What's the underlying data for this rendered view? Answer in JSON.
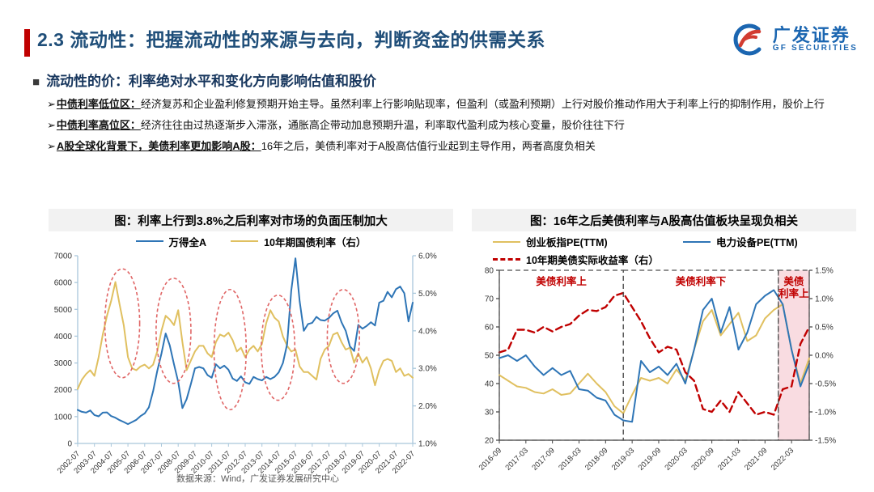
{
  "page": {
    "title": "2.3 流动性：把握流动性的来源与去向，判断资金的供需关系",
    "bullet_square": "■",
    "subtitle": "流动性的价：利率绝对水平和变化方向影响估值和股价",
    "bullet_marker": "➢",
    "bullets": [
      {
        "lead": "中债利率低位区：",
        "text": "经济复苏和企业盈利修复预期开始主导。虽然利率上行影响贴现率，但盈利（或盈利预期）上行对股价推动作用大于利率上行的抑制作用，股价上行"
      },
      {
        "lead": "中债利率高位区：",
        "text": "经济往往由过热逐渐步入滞涨，通胀高企带动加息预期升温，利率取代盈利成为核心变量，股价往往下行"
      },
      {
        "lead": "A股全球化背景下，美债利率更加影响A股：",
        "text": "16年之后，美债利率对于A股高估值行业起到主导作用，两者高度负相关"
      }
    ],
    "footer": "数据来源：Wind，广发证券发展研究中心",
    "logo": {
      "cn": "广发证券",
      "en": "GF SECURITIES"
    }
  },
  "colors": {
    "accent_red": "#C00000",
    "title_blue": "#1F4E79",
    "line_blue": "#2E75B6",
    "line_yellow": "#E0C060",
    "dash_red": "#C00000",
    "ellipse_red": "#E06666",
    "region_pink": "#F7D3D9"
  },
  "chart_data": [
    {
      "type": "line",
      "title": "图：利率上行到3.8%之后利率对市场的负面压制加大",
      "x_range": [
        "2002-07",
        "2022-07"
      ],
      "x_labels": [
        "2002-07",
        "2003-07",
        "2004-07",
        "2005-07",
        "2006-07",
        "2007-07",
        "2008-07",
        "2009-07",
        "2010-07",
        "2011-07",
        "2012-07",
        "2013-07",
        "2014-07",
        "2015-07",
        "2016-07",
        "2017-07",
        "2018-07",
        "2019-07",
        "2020-07",
        "2021-07",
        "2022-07"
      ],
      "left_axis": {
        "min": 0,
        "max": 7000,
        "step": 1000
      },
      "right_axis": {
        "min": 1,
        "max": 6,
        "step": 1
      },
      "series": [
        {
          "name": "万得全A",
          "color": "#2E75B6",
          "axis": "left",
          "dashed": false,
          "values": [
            1250,
            1180,
            1150,
            1230,
            1060,
            1010,
            1150,
            1160,
            1020,
            960,
            870,
            800,
            720,
            800,
            880,
            1020,
            1120,
            1350,
            1950,
            2700,
            3350,
            4100,
            3650,
            2950,
            2300,
            1320,
            1650,
            2200,
            2800,
            2850,
            2800,
            2550,
            2450,
            2950,
            2800,
            2900,
            2750,
            2420,
            2330,
            2500,
            2280,
            2220,
            2480,
            2400,
            2350,
            2480,
            2400,
            2480,
            2650,
            3000,
            3700,
            5700,
            6900,
            5300,
            4200,
            4450,
            4500,
            4720,
            4600,
            4580,
            4680,
            4850,
            4950,
            4520,
            4200,
            3620,
            3450,
            4420,
            4280,
            4380,
            4520,
            4400,
            5250,
            5320,
            5650,
            5450,
            5750,
            5850,
            5600,
            4550,
            5250
          ]
        },
        {
          "name": "10年期国债利率（右）",
          "color": "#E0C060",
          "axis": "right",
          "dashed": false,
          "values": [
            2.45,
            2.7,
            2.85,
            2.95,
            2.8,
            3.3,
            3.9,
            4.4,
            4.8,
            5.3,
            4.7,
            4.15,
            3.3,
            3.0,
            2.95,
            3.05,
            3.1,
            3.0,
            3.1,
            3.45,
            4.0,
            4.4,
            4.3,
            4.15,
            4.55,
            3.7,
            2.95,
            3.2,
            3.45,
            3.6,
            3.6,
            3.4,
            3.3,
            3.7,
            3.9,
            3.85,
            3.95,
            3.75,
            3.45,
            3.55,
            3.3,
            3.5,
            3.6,
            3.45,
            3.65,
            4.2,
            4.55,
            4.35,
            4.25,
            3.85,
            3.6,
            3.45,
            3.5,
            3.05,
            2.9,
            2.9,
            2.8,
            2.7,
            3.25,
            3.5,
            3.6,
            3.9,
            3.95,
            3.7,
            3.5,
            3.55,
            3.15,
            3.4,
            3.15,
            3.3,
            3.0,
            2.55,
            2.95,
            3.2,
            3.25,
            3.2,
            2.9,
            3.0,
            2.8,
            2.85,
            2.75
          ]
        }
      ],
      "annotations": {
        "ellipses": [
          {
            "fx": 0.133,
            "fy": 0.36,
            "frx": 0.052,
            "fry": 0.29
          },
          {
            "fx": 0.286,
            "fy": 0.4,
            "frx": 0.052,
            "fry": 0.28
          },
          {
            "fx": 0.455,
            "fy": 0.5,
            "frx": 0.048,
            "fry": 0.32
          },
          {
            "fx": 0.598,
            "fy": 0.49,
            "frx": 0.05,
            "fry": 0.28
          },
          {
            "fx": 0.793,
            "fy": 0.43,
            "frx": 0.048,
            "fry": 0.25
          }
        ]
      }
    },
    {
      "type": "line",
      "title": "图：16年之后美债利率与A股高估值板块呈现负相关",
      "x_range": [
        "2016-09",
        "2022-07"
      ],
      "months_total": 70,
      "tick_months": [
        0,
        6,
        12,
        18,
        24,
        30,
        36,
        42,
        48,
        54,
        60,
        66
      ],
      "x_labels": [
        "2016-09",
        "2017-03",
        "2017-09",
        "2018-03",
        "2018-09",
        "2019-03",
        "2019-09",
        "2020-03",
        "2020-09",
        "2021-03",
        "2021-09",
        "2022-03"
      ],
      "left_axis": {
        "min": 20,
        "max": 80,
        "step": 10
      },
      "right_axis": {
        "min": -1.5,
        "max": 1.5,
        "step": 0.5
      },
      "series": [
        {
          "name": "创业板指PE(TTM)",
          "color": "#E0C060",
          "axis": "left",
          "dashed": false,
          "values": [
            43,
            41,
            39,
            38.5,
            37,
            36.5,
            38,
            36,
            36.5,
            40,
            43.5,
            40,
            37,
            32,
            29.5,
            36,
            42,
            41,
            42,
            40,
            45,
            41,
            52,
            62,
            66,
            57,
            61,
            65,
            55,
            57,
            63,
            66,
            68,
            52,
            40,
            49
          ]
        },
        {
          "name": "电力设备PE(TTM)",
          "color": "#2E75B6",
          "axis": "left",
          "dashed": false,
          "values": [
            49,
            50,
            48,
            50,
            46,
            43,
            45.5,
            43,
            44.5,
            38,
            37.5,
            35,
            34,
            29,
            27,
            26.5,
            48,
            44,
            46,
            43,
            47,
            40,
            52,
            66,
            70,
            58,
            67,
            52,
            58,
            68,
            71,
            73,
            68,
            52,
            39,
            47
          ]
        },
        {
          "name": "10年期美债实际收益率（右）",
          "color": "#C00000",
          "axis": "right",
          "dashed": true,
          "values": [
            0.05,
            0.1,
            0.45,
            0.45,
            0.4,
            0.5,
            0.42,
            0.5,
            0.55,
            0.7,
            0.8,
            0.78,
            0.85,
            1.05,
            1.1,
            0.85,
            0.6,
            0.3,
            0.05,
            0.15,
            0.1,
            -0.3,
            -0.45,
            -0.95,
            -1.0,
            -0.8,
            -1.0,
            -0.65,
            -0.85,
            -1.05,
            -1.0,
            -1.05,
            -0.6,
            -0.55,
            0.2,
            0.5
          ]
        }
      ],
      "regions": [
        {
          "label_lines": [
            "美债利率上"
          ],
          "from": 0,
          "to": 28,
          "fill": "none"
        },
        {
          "label_lines": [
            "美债利率下"
          ],
          "from": 28,
          "to": 63,
          "fill": "none"
        },
        {
          "label_lines": [
            "美债",
            "利率上"
          ],
          "from": 63,
          "to": 70,
          "fill": "#F7D3D9"
        }
      ]
    }
  ]
}
